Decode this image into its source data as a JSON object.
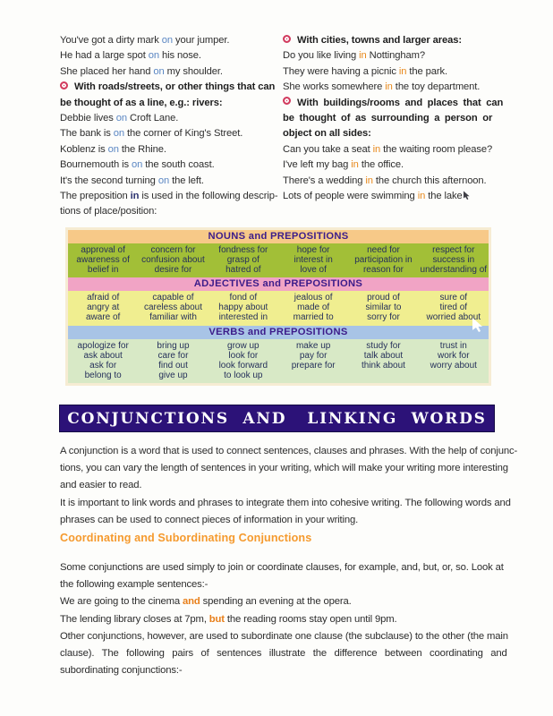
{
  "icons": {
    "bullet": "ring-bullet-icon",
    "white_cursor": "mouse-pointer-icon",
    "dark_cursor": "mouse-pointer-icon"
  },
  "colors": {
    "highlight_on": "#5b87c3",
    "highlight_in": "#e8891c",
    "conjunction_highlight": "#e87f1a",
    "banner_bg": "#2c1278",
    "banner_text": "#ffffff",
    "subheading": "#f59a2e",
    "table_header_text": "#3c1c8a",
    "nouns_header_bg": "#f7c988",
    "nouns_row_bg": "#a2bf37",
    "adjectives_header_bg": "#f1a4c5",
    "adjectives_row_bg": "#f0ee90",
    "verbs_header_bg": "#a8c4e6",
    "verbs_row_bg": "#d8e9c6"
  },
  "left_column": {
    "lines": [
      {
        "s": [
          [
            "You've got a dirty mark "
          ],
          [
            "on",
            "on"
          ],
          [
            " your jumper."
          ]
        ]
      },
      {
        "s": [
          [
            "He had a large spot "
          ],
          [
            "on",
            "on"
          ],
          [
            " his nose."
          ]
        ]
      },
      {
        "s": [
          [
            "She placed her hand "
          ],
          [
            "on",
            "on"
          ],
          [
            " my shoulder."
          ]
        ]
      },
      {
        "s": [
          [
            "With roads/streets, or other things that can"
          ]
        ],
        "b": true,
        "bullet": true
      },
      {
        "s": [
          [
            "be thought of as a line, e.g.: rivers:"
          ]
        ],
        "b": true
      },
      {
        "s": [
          [
            "Debbie lives "
          ],
          [
            "on",
            "on"
          ],
          [
            " Croft Lane."
          ]
        ]
      },
      {
        "s": [
          [
            "The bank is "
          ],
          [
            "on",
            "on"
          ],
          [
            " the corner of King's Street."
          ]
        ]
      },
      {
        "s": [
          [
            "Koblenz is "
          ],
          [
            "on",
            "on"
          ],
          [
            " the Rhine."
          ]
        ]
      },
      {
        "s": [
          [
            "Bournemouth is "
          ],
          [
            "on",
            "on"
          ],
          [
            " the south coast."
          ]
        ]
      },
      {
        "s": [
          [
            "It's the second turning "
          ],
          [
            "on",
            "on"
          ],
          [
            " the left."
          ]
        ]
      },
      {
        "s": [
          [
            "The preposition "
          ],
          [
            "in",
            "bin"
          ],
          [
            " is used in the following descrip-"
          ]
        ]
      },
      {
        "s": [
          [
            "tions of place/position:"
          ]
        ]
      }
    ]
  },
  "right_column": {
    "lines": [
      {
        "s": [
          [
            "With cities, towns and larger areas:"
          ]
        ],
        "b": true,
        "bullet": true
      },
      {
        "s": [
          [
            "Do you like living "
          ],
          [
            "in",
            "in"
          ],
          [
            " Nottingham?"
          ]
        ]
      },
      {
        "s": [
          [
            "They were having a picnic "
          ],
          [
            "in",
            "in"
          ],
          [
            " the park."
          ]
        ]
      },
      {
        "s": [
          [
            "She works somewhere "
          ],
          [
            "in",
            "in"
          ],
          [
            " the toy department."
          ]
        ]
      },
      {
        "s": [
          [
            "With buildings/rooms and places that can"
          ]
        ],
        "b": true,
        "bullet": true,
        "w": true
      },
      {
        "s": [
          [
            "be thought of as surrounding a person or"
          ]
        ],
        "b": true,
        "w": true
      },
      {
        "s": [
          [
            "object on all sides:"
          ]
        ],
        "b": true
      },
      {
        "s": [
          [
            "Can you take a seat "
          ],
          [
            "in",
            "in"
          ],
          [
            " the waiting room please?"
          ]
        ]
      },
      {
        "s": [
          [
            "I've left my bag "
          ],
          [
            "in",
            "in"
          ],
          [
            " the office."
          ]
        ]
      },
      {
        "s": [
          [
            "There's a wedding "
          ],
          [
            "in",
            "in"
          ],
          [
            " the church this afternoon."
          ]
        ]
      },
      {
        "s": [
          [
            "Lots of people were swimming "
          ],
          [
            "in",
            "in"
          ],
          [
            " the lake"
          ]
        ],
        "cursorEnd": true
      }
    ]
  },
  "table": {
    "sections": [
      {
        "id": "nouns",
        "header": "NOUNS  and  PREPOSITIONS",
        "header_bg": "#f7c988",
        "row_bg": "#a2bf37",
        "columns": [
          [
            "approval of",
            "awareness of",
            "belief in"
          ],
          [
            "concern for",
            "confusion about",
            "desire for"
          ],
          [
            "fondness for",
            "grasp of",
            "hatred of"
          ],
          [
            "hope for",
            "interest in",
            "love of"
          ],
          [
            "need for",
            "participation in",
            "reason for"
          ],
          [
            "respect for",
            "success in",
            "understanding of"
          ]
        ]
      },
      {
        "id": "adjectives",
        "header": "ADJECTIVES  and  PREPOSITIONS",
        "header_bg": "#f1a4c5",
        "row_bg": "#f0ee90",
        "columns": [
          [
            "afraid of",
            "angry at",
            "aware of"
          ],
          [
            "capable of",
            "careless about",
            "familiar with"
          ],
          [
            "fond of",
            "happy about",
            "interested in"
          ],
          [
            "jealous of",
            "made of",
            "married to"
          ],
          [
            "proud of",
            "similar to",
            "sorry for"
          ],
          [
            "sure of",
            "tired of",
            "worried about"
          ]
        ]
      },
      {
        "id": "verbs",
        "header": "VERBS  and  PREPOSITIONS",
        "header_bg": "#a8c4e6",
        "row_bg": "#d8e9c6",
        "columns": [
          [
            "apologize for",
            "ask about",
            "ask for",
            "belong to"
          ],
          [
            "bring up",
            "care for",
            "find out",
            "give up"
          ],
          [
            "grow up",
            "look for",
            "look forward",
            "to look up"
          ],
          [
            "make up",
            "pay for",
            "prepare for"
          ],
          [
            "study for",
            "talk about",
            "think about"
          ],
          [
            "trust in",
            "work for",
            "worry about"
          ]
        ]
      }
    ]
  },
  "banner": {
    "title": "CONJUNCTIONS  AND   LINKING  WORDS"
  },
  "intro": {
    "lines": [
      "A conjunction is a word that is used to connect sentences, clauses and phrases. With the help of conjunc-",
      "tions, you can vary the length of sentences in your writing, which will make your writing more interesting",
      "and easier to read.",
      "It is important to link words and phrases to integrate them into cohesive writing. The following words and",
      "phrases can be used to connect pieces of information in your writing."
    ]
  },
  "subheading": "Coordinating and Subordinating Conjunctions",
  "body": {
    "lines": [
      {
        "s": [
          [
            "Some conjunctions are used simply to join or coordinate clauses, for example, and, but, or, so. Look at"
          ]
        ]
      },
      {
        "s": [
          [
            "the following example sentences:-"
          ]
        ]
      },
      {
        "s": [
          [
            "We are going to the cinema "
          ],
          [
            "and",
            "conj"
          ],
          [
            " spending an evening at the opera."
          ]
        ]
      },
      {
        "s": [
          [
            "The lending library closes at 7pm, "
          ],
          [
            "but",
            "conj"
          ],
          [
            " the reading rooms stay open until 9pm."
          ]
        ]
      },
      {
        "s": [
          [
            "Other conjunctions, however, are used to subordinate one clause (the subclause) to the other (the main"
          ]
        ]
      },
      {
        "s": [
          [
            "clause). The following pairs of sentences illustrate the difference between coordinating and"
          ]
        ],
        "wide": true
      },
      {
        "s": [
          [
            "subordinating conjunctions:-"
          ]
        ]
      }
    ]
  }
}
